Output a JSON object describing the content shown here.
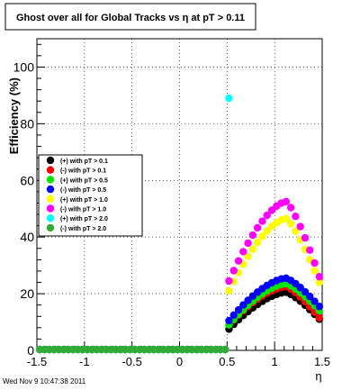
{
  "chart_data": {
    "type": "scatter",
    "title": "Ghost over all for Global Tracks vs η at pT > 0.11",
    "xlabel": "η",
    "ylabel": "Efficiency (%)",
    "xlim": [
      -1.5,
      1.5
    ],
    "ylim": [
      0,
      110
    ],
    "x_ticks": [
      "-1.5",
      "-1",
      "-0.5",
      "0",
      "0.5",
      "1",
      "1.5"
    ],
    "y_ticks": [
      "0",
      "20",
      "40",
      "60",
      "80",
      "100"
    ],
    "grid": true,
    "legend_position": "left-middle",
    "series": [
      {
        "name": "(+) with pT > 0.1",
        "color": "#000000"
      },
      {
        "name": "(-) with pT > 0.1",
        "color": "#ff0000"
      },
      {
        "name": "(+) with pT > 0.5",
        "color": "#00e600"
      },
      {
        "name": "(-) with pT > 0.5",
        "color": "#0000ff"
      },
      {
        "name": "(+) with pT > 1.0",
        "color": "#ffff00"
      },
      {
        "name": "(-) with pT > 1.0",
        "color": "#ff00ff"
      },
      {
        "name": "(+) with pT > 2.0",
        "color": "#00ffff"
      },
      {
        "name": "(-) with pT > 2.0",
        "color": "#33aa33"
      }
    ],
    "peaks": [
      {
        "series": 0,
        "peak": 20.5,
        "start": 7.5,
        "end": 11
      },
      {
        "series": 1,
        "peak": 22.5,
        "start": 9,
        "end": 11.5
      },
      {
        "series": 2,
        "peak": 23.5,
        "start": 9,
        "end": 14
      },
      {
        "series": 3,
        "peak": 25.5,
        "start": 10.5,
        "end": 15.5
      },
      {
        "series": 4,
        "peak": 46.5,
        "start": 21,
        "end": 24
      },
      {
        "series": 5,
        "peak": 52.5,
        "start": 24.5,
        "end": 26
      }
    ],
    "outlier": {
      "series": 6,
      "x": 0.52,
      "y": 89
    }
  },
  "footer": {
    "timestamp": "Wed Nov  9 10:47:38 2011"
  }
}
